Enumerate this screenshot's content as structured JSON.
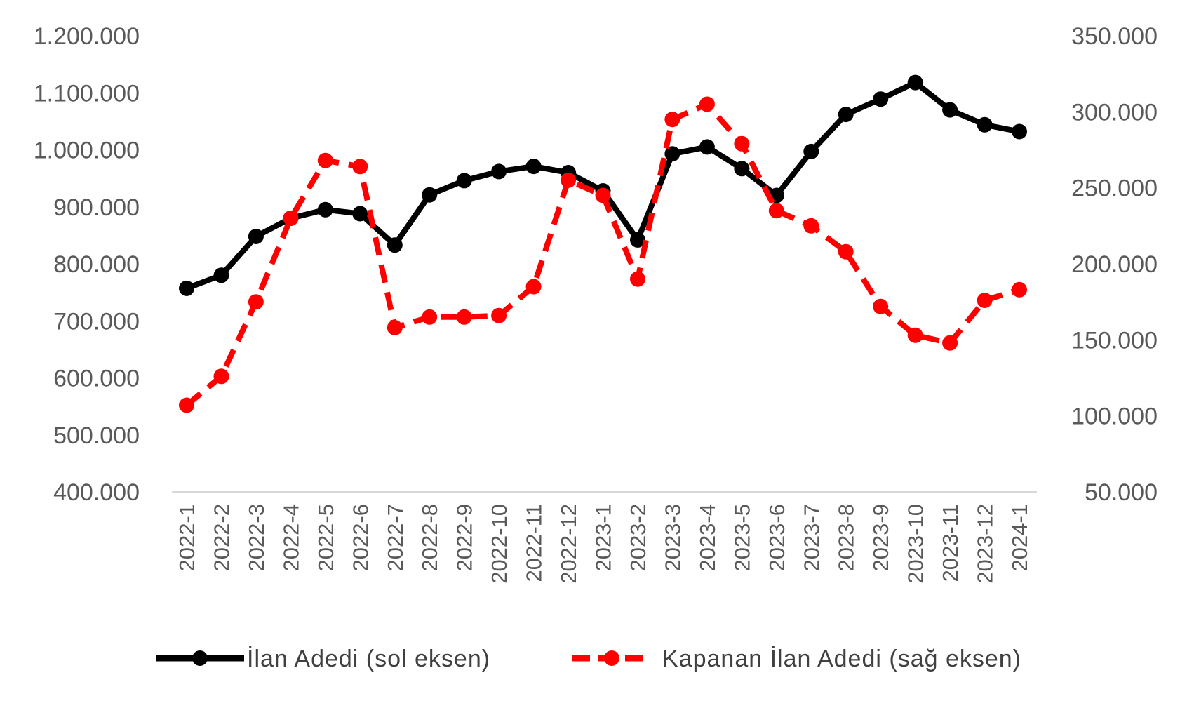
{
  "chart_data": {
    "type": "line",
    "categories": [
      "2022-1",
      "2022-2",
      "2022-3",
      "2022-4",
      "2022-5",
      "2022-6",
      "2022-7",
      "2022-8",
      "2022-9",
      "2022-10",
      "2022-11",
      "2022-12",
      "2023-1",
      "2023-2",
      "2023-3",
      "2023-4",
      "2023-5",
      "2023-6",
      "2023-7",
      "2023-8",
      "2023-9",
      "2023-10",
      "2023-11",
      "2023-12",
      "2024-1"
    ],
    "y_left": {
      "ylim": [
        400000,
        1200000
      ],
      "ticks": [
        400000,
        500000,
        600000,
        700000,
        800000,
        900000,
        1000000,
        1100000,
        1200000
      ],
      "tick_labels": [
        "400.000",
        "500.000",
        "600.000",
        "700.000",
        "800.000",
        "900.000",
        "1.000.000",
        "1.100.000",
        "1.200.000"
      ]
    },
    "y_right": {
      "ylim": [
        50000,
        350000
      ],
      "ticks": [
        50000,
        100000,
        150000,
        200000,
        250000,
        300000,
        350000
      ],
      "tick_labels": [
        "50.000",
        "100.000",
        "150.000",
        "200.000",
        "250.000",
        "300.000",
        "350.000"
      ]
    },
    "series": [
      {
        "name": "İlan Adedi (sol eksen)",
        "axis": "left",
        "color": "#000000",
        "style": "solid",
        "values": [
          757000,
          780000,
          848000,
          880000,
          895000,
          888000,
          833000,
          921000,
          946000,
          962000,
          971000,
          960000,
          928000,
          842000,
          993000,
          1005000,
          967000,
          920000,
          997000,
          1062000,
          1089000,
          1118000,
          1070000,
          1044000,
          1032000
        ]
      },
      {
        "name": "Kapanan İlan Adedi (sağ eksen)",
        "axis": "right",
        "color": "#ff0000",
        "style": "dashed",
        "values": [
          107000,
          126000,
          175000,
          230000,
          268000,
          264000,
          158000,
          165000,
          165000,
          166000,
          185000,
          255000,
          245000,
          190000,
          295000,
          305000,
          279000,
          235000,
          225000,
          208000,
          172000,
          153000,
          148000,
          176000,
          183000
        ]
      }
    ],
    "legend_position": "bottom",
    "grid": false
  }
}
